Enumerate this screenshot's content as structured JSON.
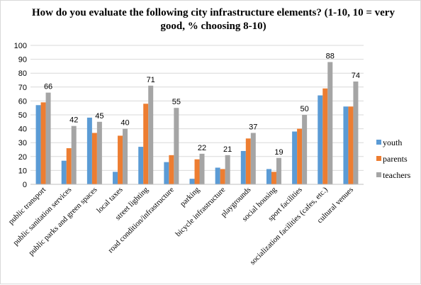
{
  "chart_data": {
    "type": "bar",
    "title": "How do you evaluate the following  city infrastructure  elements? (1-10, 10 = very good, % choosing 8-10)",
    "xlabel": "",
    "ylabel": "",
    "ylim": [
      0,
      100
    ],
    "yticks": [
      "0",
      "10",
      "20",
      "30",
      "40",
      "50",
      "60",
      "70",
      "80",
      "90",
      "100"
    ],
    "grid": true,
    "legend_position": "right",
    "categories": [
      "public transport",
      "public sanitation services",
      "public parks and green spaces",
      "local taxes",
      "street lighting",
      "road condition/infrastructure",
      "parking",
      "bicycle infrastructure",
      "playgrounds",
      "social housing",
      "sport facilities",
      "socialization facilities (cafes, etc.)",
      "cultural venues"
    ],
    "series": [
      {
        "name": "youth",
        "color": "#5b9bd5",
        "values": [
          57,
          17,
          48,
          9,
          27,
          16,
          4,
          12,
          24,
          11,
          38,
          64,
          56
        ]
      },
      {
        "name": "parents",
        "color": "#ed7d31",
        "values": [
          59,
          26,
          37,
          35,
          58,
          21,
          18,
          11,
          33,
          9,
          40,
          69,
          56
        ]
      },
      {
        "name": "teachers",
        "color": "#a5a5a5",
        "values": [
          66,
          42,
          45,
          40,
          71,
          55,
          22,
          21,
          37,
          19,
          50,
          88,
          74
        ]
      }
    ],
    "data_labels_series": "teachers",
    "data_labels": [
      "66",
      "42",
      "45",
      "40",
      "71",
      "55",
      "22",
      "21",
      "37",
      "19",
      "50",
      "88",
      "74"
    ]
  }
}
